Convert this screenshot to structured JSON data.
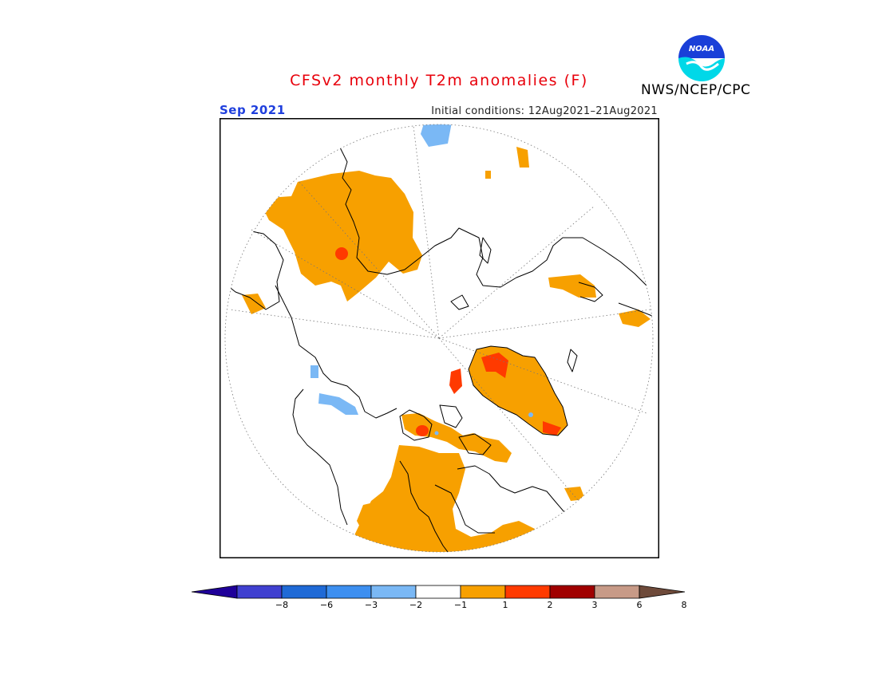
{
  "header": {
    "title": "CFSv2 monthly T2m anomalies (F)",
    "month": "Sep 2021",
    "initial_conditions": "Initial conditions: 12Aug2021–21Aug2021",
    "agency": "NWS/NCEP/CPC",
    "logo_text": "NOAA"
  },
  "legend": {
    "ticks": [
      "−8",
      "−6",
      "−3",
      "−2",
      "−1",
      "1",
      "2",
      "3",
      "6",
      "8"
    ],
    "colors": [
      "#1f0099",
      "#4040d0",
      "#1f6ad6",
      "#3d8ff0",
      "#7ab8f5",
      "#ffffff",
      "#f7a000",
      "#ff3a00",
      "#a00000",
      "#c79a87",
      "#6e4a3a"
    ]
  },
  "map": {
    "projection": "north-polar-stereographic",
    "land_color": "#000000",
    "warm_anomaly_color": "#f7a000",
    "hot_anomaly_color": "#ff3a00",
    "cool_anomaly_color": "#7ab8f5"
  }
}
